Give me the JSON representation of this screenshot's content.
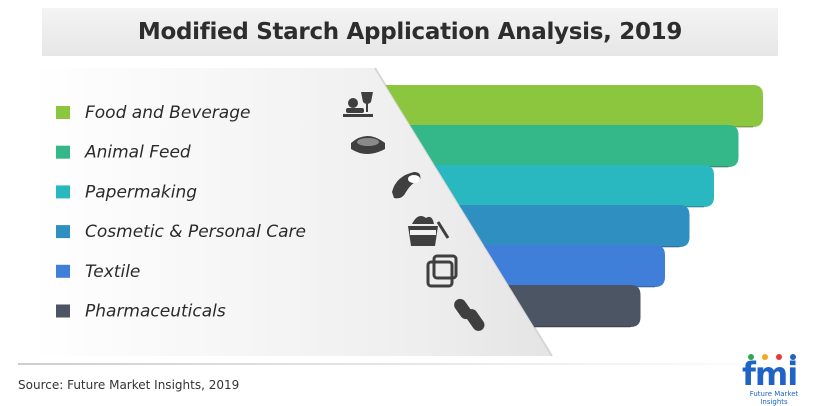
{
  "chart_data": {
    "type": "funnel",
    "title": "Modified Starch Application Analysis, 2019",
    "categories": [
      "Food and Beverage",
      "Animal Feed",
      "Papermaking",
      "Cosmetic & Personal Care",
      "Textile",
      "Pharmaceuticals"
    ],
    "colors": [
      "#8cc63f",
      "#35b889",
      "#2ab8c0",
      "#2f8fc1",
      "#3f7fd9",
      "#4b5563"
    ],
    "icons": [
      "food-tray-icon",
      "pet-bowl-icon",
      "paper-roll-icon",
      "cosmetic-jar-icon",
      "fabric-swatch-icon",
      "capsule-pill-icon"
    ],
    "legend_position": "left"
  },
  "source": "Source: Future Market Insights, 2019",
  "logo": {
    "mark": "fmi",
    "subtitle": "Future Market Insights"
  }
}
